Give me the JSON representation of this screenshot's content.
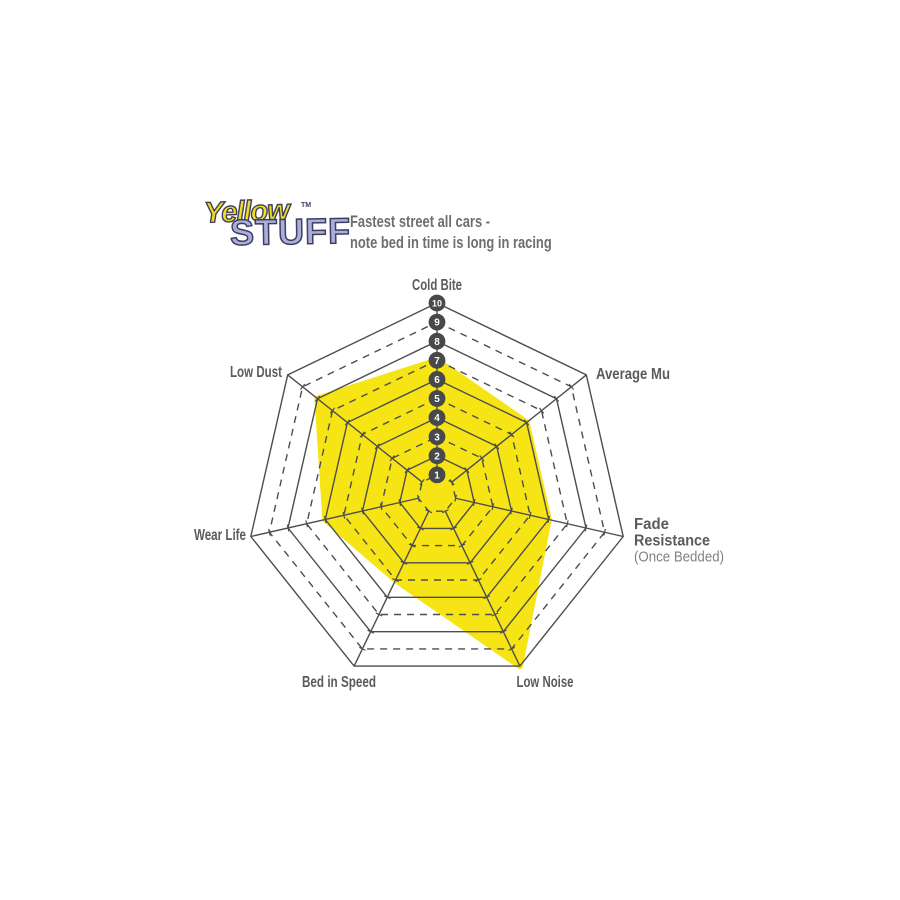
{
  "header": {
    "logo_word1": "Yellow",
    "logo_trademark": "TM",
    "logo_word2": "STUFF",
    "subtitle_line1": "Fastest street all cars -",
    "subtitle_line2": "note bed in time is long in racing",
    "colors": {
      "logo_word1": "#F2DC1E",
      "logo_word2": "#A9AEDC",
      "logo_outline": "#3E3E5E",
      "subtitle": "#6D6E71"
    }
  },
  "chart_data": {
    "type": "radar",
    "categories": [
      "Cold Bite",
      "Average Mu",
      "Fade Resistance",
      "Low Noise",
      "Bed in Speed",
      "Wear Life",
      "Low Dust"
    ],
    "category_sublabels": [
      "",
      "",
      "(Once Bedded)",
      "",
      "",
      "",
      ""
    ],
    "series": [
      {
        "name": "Yellowstuff",
        "values": [
          7,
          6,
          6,
          10,
          5,
          6,
          8
        ]
      }
    ],
    "axis_tick_labels": [
      "1",
      "2",
      "3",
      "4",
      "5",
      "6",
      "7",
      "8",
      "9",
      "10"
    ],
    "scale_min": 0,
    "scale_max": 10,
    "rings": 10,
    "grid_style": "heptagonal rings; even rings solid, odd rings dashed; radial spokes with tick marks; numbered badges on Cold Bite axis",
    "legend_position": "none",
    "colors": {
      "series_fill": "#F7E414",
      "grid": "#4D4D4F",
      "badge_fill": "#48494B",
      "badge_text": "#FFFFFF",
      "axis_label": "#5A5B5E",
      "axis_sublabel": "#808285"
    }
  }
}
